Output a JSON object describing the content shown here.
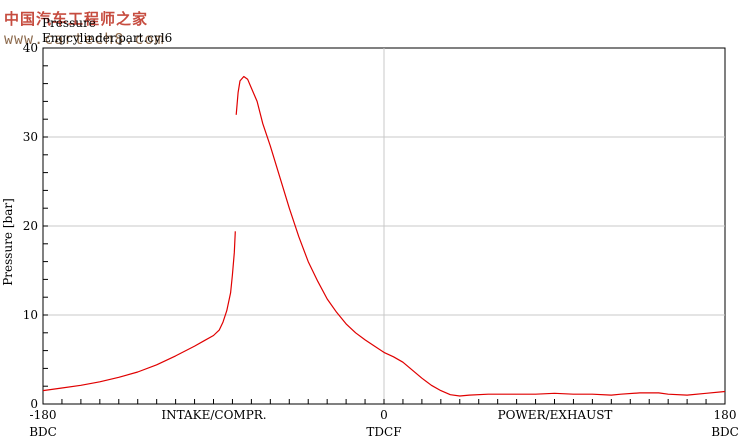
{
  "watermark": {
    "line1": "中国汽车工程师之家",
    "line2": "www.cartech8.com"
  },
  "chart_data": {
    "type": "line",
    "title": "Pressure",
    "subtitle": "Engcylinder.part.cyl6",
    "ylabel": "Pressure [bar]",
    "xlim": [
      -180,
      180
    ],
    "ylim": [
      0,
      40
    ],
    "grid": true,
    "x_ticks": [
      "-180",
      "0",
      "180"
    ],
    "y_ticks": [
      "0",
      "10",
      "20",
      "30",
      "40"
    ],
    "x_sublabels": {
      "left": "BDC",
      "center": "TDCF",
      "right": "BDC"
    },
    "region_labels": [
      "INTAKE/COMPR.",
      "POWER/EXHAUST"
    ],
    "line_color": "#e00000",
    "series": [
      {
        "segments": [
          [
            [
              -180,
              1.5
            ],
            [
              -170,
              1.8
            ],
            [
              -160,
              2.1
            ],
            [
              -150,
              2.5
            ],
            [
              -140,
              3.0
            ],
            [
              -130,
              3.6
            ],
            [
              -120,
              4.4
            ],
            [
              -110,
              5.4
            ],
            [
              -100,
              6.5
            ],
            [
              -95,
              7.1
            ],
            [
              -90,
              7.7
            ],
            [
              -87,
              8.3
            ],
            [
              -85,
              9.2
            ],
            [
              -83,
              10.5
            ],
            [
              -81,
              12.5
            ],
            [
              -80,
              14.5
            ],
            [
              -79,
              17.0
            ],
            [
              -78.5,
              19.4
            ]
          ],
          [
            [
              -78,
              32.5
            ],
            [
              -77,
              35.0
            ],
            [
              -76,
              36.3
            ],
            [
              -74,
              36.8
            ],
            [
              -72,
              36.5
            ],
            [
              -70,
              35.5
            ],
            [
              -67,
              34.0
            ],
            [
              -64,
              31.5
            ],
            [
              -60,
              29.0
            ],
            [
              -55,
              25.5
            ],
            [
              -50,
              22.0
            ],
            [
              -45,
              18.8
            ],
            [
              -40,
              16.0
            ],
            [
              -35,
              13.8
            ],
            [
              -30,
              11.8
            ],
            [
              -25,
              10.3
            ],
            [
              -20,
              9.0
            ],
            [
              -15,
              8.0
            ],
            [
              -10,
              7.2
            ],
            [
              -5,
              6.5
            ],
            [
              0,
              5.8
            ],
            [
              5,
              5.3
            ],
            [
              10,
              4.7
            ],
            [
              15,
              3.8
            ],
            [
              20,
              2.9
            ],
            [
              25,
              2.1
            ],
            [
              30,
              1.5
            ],
            [
              35,
              1.05
            ],
            [
              40,
              0.9
            ],
            [
              45,
              1.0
            ],
            [
              55,
              1.1
            ],
            [
              70,
              1.1
            ],
            [
              80,
              1.1
            ],
            [
              90,
              1.2
            ],
            [
              100,
              1.1
            ],
            [
              110,
              1.1
            ],
            [
              120,
              1.0
            ],
            [
              125,
              1.1
            ],
            [
              135,
              1.25
            ],
            [
              145,
              1.25
            ],
            [
              150,
              1.1
            ],
            [
              160,
              1.0
            ],
            [
              170,
              1.2
            ],
            [
              180,
              1.4
            ]
          ]
        ]
      }
    ]
  }
}
